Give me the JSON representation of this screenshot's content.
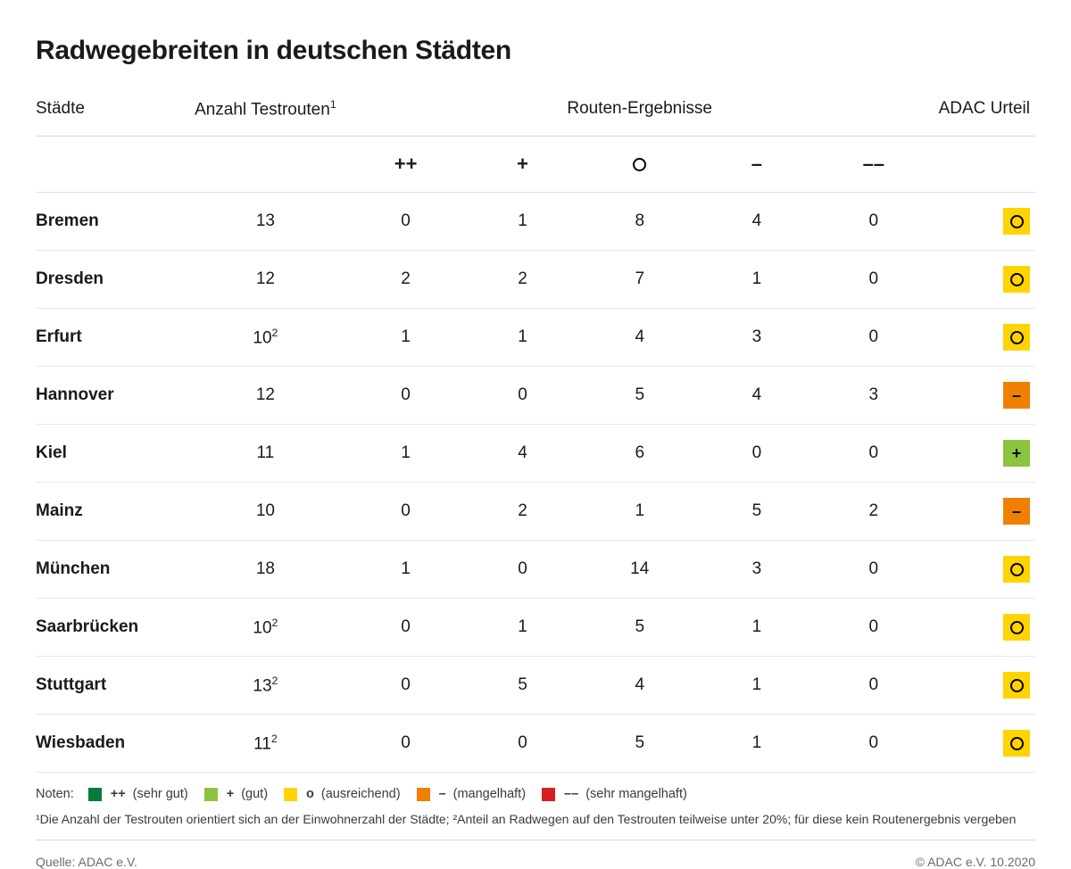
{
  "title": "Radwegebreiten in deutschen Städten",
  "columns": {
    "city": "Städte",
    "routes": "Anzahl Testrouten",
    "routes_sup": "1",
    "results": "Routen-Ergebnisse",
    "verdict": "ADAC Urteil"
  },
  "rating_symbols": [
    "++",
    "+",
    "o",
    "–",
    "––"
  ],
  "rows": [
    {
      "city": "Bremen",
      "routes": "13",
      "routes_sup": "",
      "scores": [
        0,
        1,
        8,
        4,
        0
      ],
      "verdict": "o"
    },
    {
      "city": "Dresden",
      "routes": "12",
      "routes_sup": "",
      "scores": [
        2,
        2,
        7,
        1,
        0
      ],
      "verdict": "o"
    },
    {
      "city": "Erfurt",
      "routes": "10",
      "routes_sup": "2",
      "scores": [
        1,
        1,
        4,
        3,
        0
      ],
      "verdict": "o"
    },
    {
      "city": "Hannover",
      "routes": "12",
      "routes_sup": "",
      "scores": [
        0,
        0,
        5,
        4,
        3
      ],
      "verdict": "–"
    },
    {
      "city": "Kiel",
      "routes": "11",
      "routes_sup": "",
      "scores": [
        1,
        4,
        6,
        0,
        0
      ],
      "verdict": "+"
    },
    {
      "city": "Mainz",
      "routes": "10",
      "routes_sup": "",
      "scores": [
        0,
        2,
        1,
        5,
        2
      ],
      "verdict": "–"
    },
    {
      "city": "München",
      "routes": "18",
      "routes_sup": "",
      "scores": [
        1,
        0,
        14,
        3,
        0
      ],
      "verdict": "o"
    },
    {
      "city": "Saarbrücken",
      "routes": "10",
      "routes_sup": "2",
      "scores": [
        0,
        1,
        5,
        1,
        0
      ],
      "verdict": "o"
    },
    {
      "city": "Stuttgart",
      "routes": "13",
      "routes_sup": "2",
      "scores": [
        0,
        5,
        4,
        1,
        0
      ],
      "verdict": "o"
    },
    {
      "city": "Wiesbaden",
      "routes": "11",
      "routes_sup": "2",
      "scores": [
        0,
        0,
        5,
        1,
        0
      ],
      "verdict": "o"
    }
  ],
  "legend": {
    "label": "Noten:",
    "items": [
      {
        "symbol": "++",
        "desc": "(sehr gut)",
        "color": "#0a7a3d"
      },
      {
        "symbol": "+",
        "desc": "(gut)",
        "color": "#8bc53f"
      },
      {
        "symbol": "o",
        "desc": "(ausreichend)",
        "color": "#ffd400"
      },
      {
        "symbol": "–",
        "desc": "(mangelhaft)",
        "color": "#f08000"
      },
      {
        "symbol": "––",
        "desc": "(sehr mangelhaft)",
        "color": "#d62020"
      }
    ]
  },
  "verdict_colors": {
    "++": "#0a7a3d",
    "+": "#8bc53f",
    "o": "#ffd400",
    "–": "#f08000",
    "––": "#d62020"
  },
  "footnotes": "¹Die Anzahl der Testrouten orientiert sich an der Einwohnerzahl der Städte; ²Anteil an Radwegen auf den Testrouten teilweise unter 20%; für diese kein Routenergebnis vergeben",
  "source": "Quelle: ADAC e.V.",
  "copyright": "© ADAC e.V. 10.2020"
}
